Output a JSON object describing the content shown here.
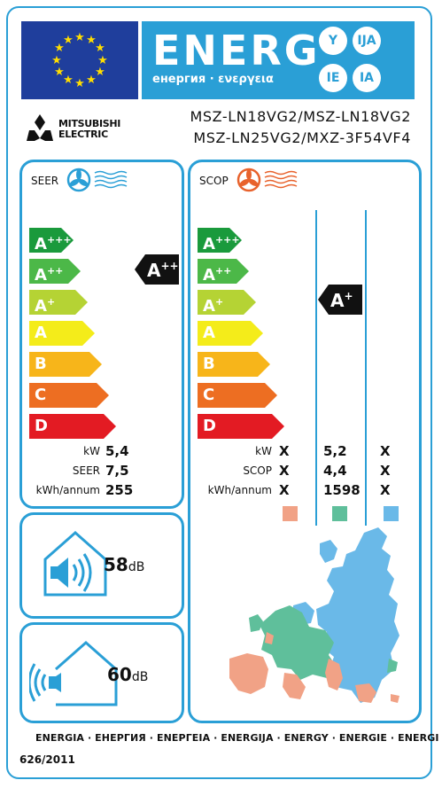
{
  "header": {
    "title": "ENERG",
    "subtitle": "енергия · ενεργεια",
    "languages": [
      "Y",
      "IJA",
      "IE",
      "IA"
    ]
  },
  "brand": {
    "name_line1": "MITSUBISHI",
    "name_line2": "ELECTRIC"
  },
  "models": [
    "MSZ-LN18VG2/MSZ-LN18VG2",
    "MSZ-LN25VG2/MXZ-3F54VF4"
  ],
  "classes": [
    "A+++",
    "A++",
    "A+",
    "A",
    "B",
    "C",
    "D"
  ],
  "class_colors": [
    "#1a9a3c",
    "#4cb848",
    "#b5d334",
    "#f4ec1a",
    "#f7b51a",
    "#ed6e22",
    "#e31b23"
  ],
  "seer": {
    "title": "SEER",
    "rating_base": "A",
    "rating_sup": "++",
    "labels": [
      "kW",
      "SEER",
      "kWh/annum"
    ],
    "values": [
      "5,4",
      "7,5",
      "255"
    ]
  },
  "scop": {
    "title": "SCOP",
    "rating_base": "A",
    "rating_sup": "+",
    "labels": [
      "kW",
      "SCOP",
      "kWh/annum"
    ],
    "col_warm": [
      "X",
      "X",
      "X"
    ],
    "col_average": [
      "5,2",
      "4,4",
      "1598"
    ],
    "col_cold": [
      "X",
      "X",
      "X"
    ],
    "zone_colors": [
      "#f1a286",
      "#5fbf9b",
      "#6ab9e8"
    ]
  },
  "noise": {
    "indoor_value": "58",
    "indoor_unit": "dB",
    "outdoor_value": "60",
    "outdoor_unit": "dB"
  },
  "footer": {
    "energy_words": "ENERGIA · ЕНЕРГИЯ · ΕΝΕΡΓΕΙΑ · ENERGIJA · ENERGY · ENERGIE · ENERGI",
    "regulation": "626/2011"
  }
}
